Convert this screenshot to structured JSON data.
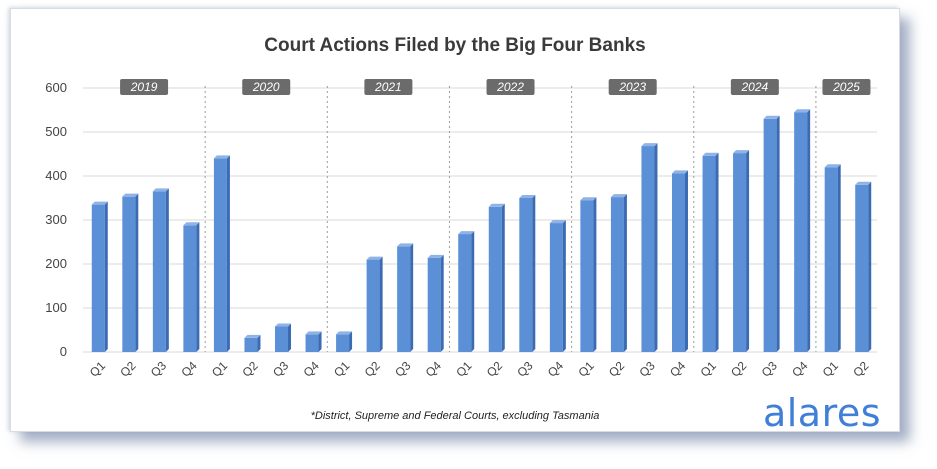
{
  "chart_data": {
    "type": "bar",
    "title": "Court Actions Filed by the Big Four Banks",
    "footnote": "*District, Supreme and Federal Courts, excluding Tasmania",
    "logo": "alares",
    "ylim": [
      0,
      600
    ],
    "yticks": [
      0,
      100,
      200,
      300,
      400,
      500,
      600
    ],
    "grid": true,
    "legend": "none",
    "bar_color": "#5b8fd6",
    "groups": [
      {
        "year": "2019",
        "quarters": [
          "Q1",
          "Q2",
          "Q3",
          "Q4"
        ]
      },
      {
        "year": "2020",
        "quarters": [
          "Q1",
          "Q2",
          "Q3",
          "Q4"
        ]
      },
      {
        "year": "2021",
        "quarters": [
          "Q1",
          "Q2",
          "Q3",
          "Q4"
        ]
      },
      {
        "year": "2022",
        "quarters": [
          "Q1",
          "Q2",
          "Q3",
          "Q4"
        ]
      },
      {
        "year": "2023",
        "quarters": [
          "Q1",
          "Q2",
          "Q3",
          "Q4"
        ]
      },
      {
        "year": "2024",
        "quarters": [
          "Q1",
          "Q2",
          "Q3",
          "Q4"
        ]
      },
      {
        "year": "2025",
        "quarters": [
          "Q1",
          "Q2"
        ]
      }
    ],
    "values": [
      335,
      353,
      365,
      288,
      440,
      32,
      58,
      40,
      40,
      210,
      240,
      214,
      268,
      330,
      350,
      293,
      345,
      352,
      468,
      406,
      446,
      452,
      530,
      545,
      420,
      380
    ]
  }
}
